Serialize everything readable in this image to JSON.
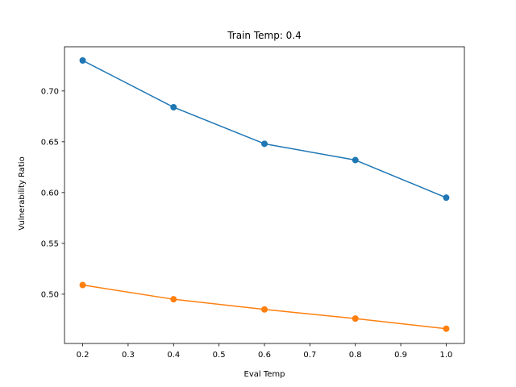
{
  "chart_data": {
    "type": "line",
    "title": "Train Temp: 0.4",
    "xlabel": "Eval Temp",
    "ylabel": "Vulnerability Ratio",
    "x": [
      0.2,
      0.4,
      0.6,
      0.8,
      1.0
    ],
    "xlim": [
      0.16,
      1.04
    ],
    "ylim": [
      0.4515,
      0.7435
    ],
    "xticks": [
      "0.2",
      "0.3",
      "0.4",
      "0.5",
      "0.6",
      "0.7",
      "0.8",
      "0.9",
      "1.0"
    ],
    "yticks": [
      "0.50",
      "0.55",
      "0.60",
      "0.65",
      "0.70"
    ],
    "grid": false,
    "series": [
      {
        "color": "#1f77b4",
        "values": [
          0.73,
          0.684,
          0.648,
          0.632,
          0.595
        ]
      },
      {
        "color": "#ff7f0e",
        "values": [
          0.509,
          0.495,
          0.485,
          0.476,
          0.466
        ]
      }
    ]
  }
}
